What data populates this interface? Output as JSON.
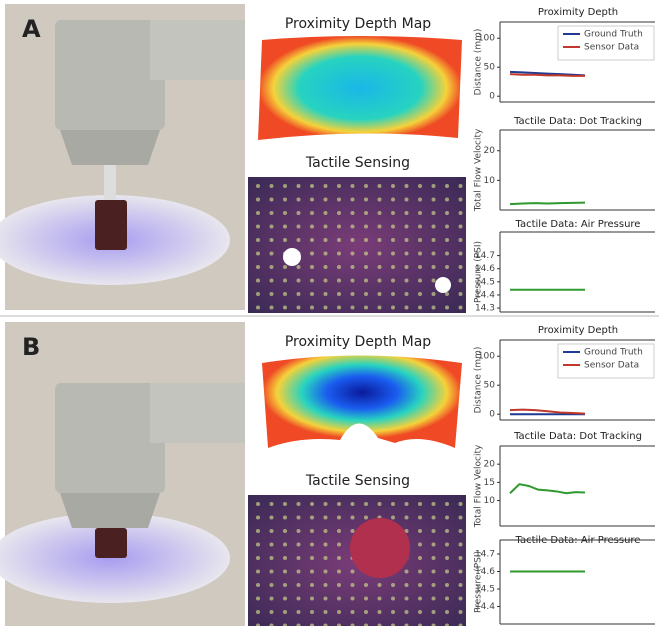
{
  "panels": [
    {
      "label": "A",
      "depth_title": "Proximity Depth Map",
      "tactile_title": "Tactile Sensing"
    },
    {
      "label": "B",
      "depth_title": "Proximity Depth Map",
      "tactile_title": "Tactile Sensing"
    }
  ],
  "chart_data": [
    {
      "type": "line",
      "title": "Proximity Depth",
      "ylabel": "Distance (mm)",
      "categories": [
        null,
        null,
        null,
        null,
        null,
        null,
        null
      ],
      "series": [
        {
          "name": "Ground Truth",
          "color": "#1f3a93",
          "values": [
            42,
            41,
            40,
            39,
            38,
            37,
            36
          ]
        },
        {
          "name": "Sensor Data",
          "color": "#c0392b",
          "values": [
            38,
            37,
            37,
            36,
            36,
            35,
            35
          ]
        }
      ],
      "ylim": [
        -10,
        128
      ],
      "yticks": [
        0,
        50,
        100
      ],
      "legend": "upper-right"
    },
    {
      "type": "line",
      "title": "Tactile Data: Dot Tracking",
      "ylabel": "Total Flow Velocity",
      "categories": [
        null,
        null,
        null,
        null,
        null,
        null,
        null
      ],
      "series": [
        {
          "color": "#2e9a2e",
          "values": [
            2,
            2.2,
            2.3,
            2.2,
            2.3,
            2.4,
            2.5
          ]
        }
      ],
      "ylim": [
        0,
        27
      ],
      "yticks": [
        10,
        20
      ]
    },
    {
      "type": "line",
      "title": "Tactile Data: Air Pressure",
      "ylabel": "Pressure (PSI)",
      "categories": [
        null,
        null,
        null,
        null,
        null,
        null,
        null
      ],
      "series": [
        {
          "color": "#2e9a2e",
          "values": [
            14.44,
            14.44,
            14.44,
            14.44,
            14.44,
            14.44,
            14.44
          ]
        }
      ],
      "ylim": [
        14.27,
        14.88
      ],
      "yticks": [
        14.3,
        14.4,
        14.5,
        14.6,
        14.7
      ]
    },
    {
      "type": "line",
      "title": "Proximity Depth",
      "ylabel": "Distance (mm)",
      "categories": [
        null,
        null,
        null,
        null,
        null,
        null,
        null
      ],
      "series": [
        {
          "name": "Ground Truth",
          "color": "#1f3a93",
          "values": [
            0,
            0,
            0,
            0,
            0,
            0,
            0
          ]
        },
        {
          "name": "Sensor Data",
          "color": "#c0392b",
          "values": [
            7,
            8,
            7,
            5,
            3,
            2,
            1
          ]
        }
      ],
      "ylim": [
        -10,
        128
      ],
      "yticks": [
        0,
        50,
        100
      ],
      "legend": "upper-right"
    },
    {
      "type": "line",
      "title": "Tactile Data: Dot Tracking",
      "ylabel": "Total Flow Velocity",
      "categories": [
        null,
        null,
        null,
        null,
        null,
        null,
        null,
        null,
        null
      ],
      "series": [
        {
          "color": "#2e9a2e",
          "values": [
            12,
            14.5,
            14,
            13,
            12.8,
            12.5,
            12,
            12.3,
            12.2
          ]
        }
      ],
      "ylim": [
        3,
        25
      ],
      "yticks": [
        10,
        15,
        20
      ]
    },
    {
      "type": "line",
      "title": "Tactile Data: Air Pressure",
      "ylabel": "Pressure (PSI)",
      "categories": [
        null,
        null,
        null,
        null,
        null,
        null,
        null
      ],
      "series": [
        {
          "color": "#2e9a2e",
          "values": [
            14.6,
            14.6,
            14.6,
            14.6,
            14.6,
            14.6,
            14.6
          ]
        }
      ],
      "ylim": [
        14.3,
        14.78
      ],
      "yticks": [
        14.4,
        14.5,
        14.6,
        14.7
      ]
    }
  ]
}
